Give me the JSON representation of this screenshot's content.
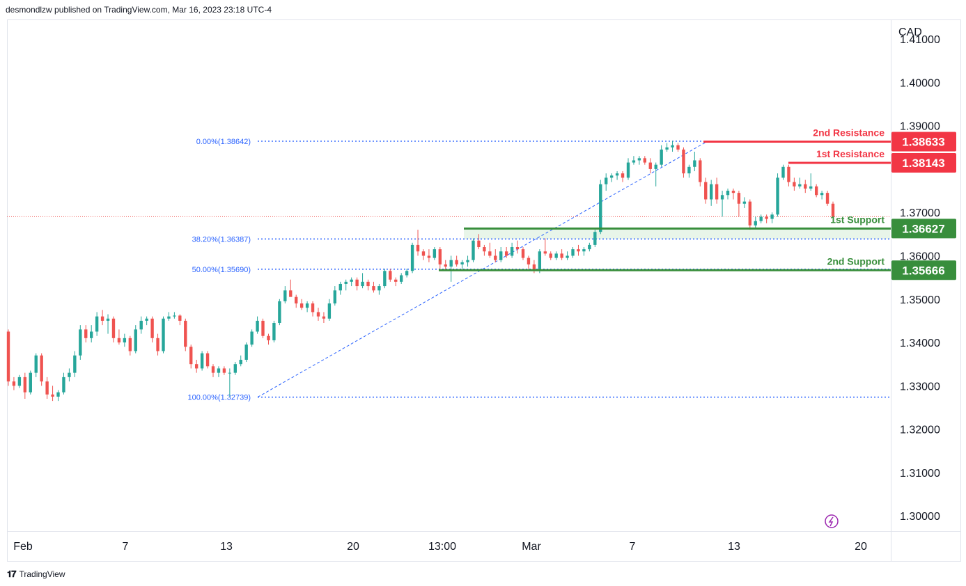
{
  "header": {
    "text": "desmondlzw published on TradingView.com, Mar 16, 2023 23:18 UTC-4"
  },
  "footer": {
    "brand": "TradingView",
    "logo_icon": "tradingview-logo-icon"
  },
  "colors": {
    "up": "#26a69a",
    "down": "#ef5350",
    "green": "#388e3c",
    "red": "#f23645",
    "fib": "#2962ff",
    "zone": "#e8f5e9"
  },
  "chart_data": {
    "type": "candlestick",
    "currency": "CAD",
    "ylim": [
      1.2965,
      1.4145
    ],
    "y_ticks": [
      "1.41000",
      "1.40000",
      "1.39000",
      "1.37000",
      "1.36000",
      "1.35000",
      "1.34000",
      "1.33000",
      "1.32000",
      "1.31000",
      "1.30000"
    ],
    "x_ticks": [
      "Feb",
      "7",
      "13",
      "20",
      "13:00",
      "Mar",
      "7",
      "13",
      "20"
    ],
    "levels": [
      {
        "label": "2nd Resistance",
        "value": "1.38633",
        "v": 1.38633,
        "kind": "resistance"
      },
      {
        "label": "1st Resistance",
        "value": "1.38143",
        "v": 1.38143,
        "kind": "resistance"
      },
      {
        "label": "1st Support",
        "value": "1.36627",
        "v": 1.36627,
        "kind": "support"
      },
      {
        "label": "2nd Support",
        "value": "1.35666",
        "v": 1.35666,
        "kind": "support"
      }
    ],
    "fib_levels": [
      {
        "label": "0.00%(1.38642)",
        "v": 1.38642
      },
      {
        "label": "38.20%(1.36387)",
        "v": 1.36387
      },
      {
        "label": "50.00%(1.35690)",
        "v": 1.3569
      },
      {
        "label": "100.00%(1.32739)",
        "v": 1.32739
      }
    ],
    "last_price": 1.369,
    "candles": [
      [
        1.3425,
        1.343,
        1.33,
        1.331
      ],
      [
        1.331,
        1.332,
        1.329,
        1.33
      ],
      [
        1.33,
        1.3325,
        1.3295,
        1.332
      ],
      [
        1.332,
        1.333,
        1.327,
        1.3285
      ],
      [
        1.3285,
        1.3335,
        1.328,
        1.333
      ],
      [
        1.333,
        1.3375,
        1.332,
        1.337
      ],
      [
        1.337,
        1.3375,
        1.33,
        1.331
      ],
      [
        1.331,
        1.332,
        1.327,
        1.328
      ],
      [
        1.328,
        1.33,
        1.3265,
        1.3275
      ],
      [
        1.3275,
        1.329,
        1.3265,
        1.3285
      ],
      [
        1.3285,
        1.333,
        1.328,
        1.332
      ],
      [
        1.332,
        1.334,
        1.331,
        1.333
      ],
      [
        1.333,
        1.338,
        1.332,
        1.337
      ],
      [
        1.337,
        1.344,
        1.336,
        1.343
      ],
      [
        1.343,
        1.344,
        1.34,
        1.341
      ],
      [
        1.341,
        1.344,
        1.34,
        1.3425
      ],
      [
        1.3425,
        1.347,
        1.3415,
        1.346
      ],
      [
        1.346,
        1.3475,
        1.344,
        1.345
      ],
      [
        1.345,
        1.3465,
        1.342,
        1.3455
      ],
      [
        1.3455,
        1.346,
        1.34,
        1.341
      ],
      [
        1.341,
        1.343,
        1.3395,
        1.34
      ],
      [
        1.34,
        1.342,
        1.339,
        1.341
      ],
      [
        1.341,
        1.3415,
        1.337,
        1.338
      ],
      [
        1.338,
        1.344,
        1.3375,
        1.343
      ],
      [
        1.343,
        1.346,
        1.342,
        1.345
      ],
      [
        1.345,
        1.346,
        1.344,
        1.3455
      ],
      [
        1.3455,
        1.346,
        1.34,
        1.341
      ],
      [
        1.341,
        1.342,
        1.337,
        1.338
      ],
      [
        1.338,
        1.346,
        1.3375,
        1.3455
      ],
      [
        1.3455,
        1.347,
        1.345,
        1.346
      ],
      [
        1.346,
        1.347,
        1.3455,
        1.3462
      ],
      [
        1.3462,
        1.3465,
        1.344,
        1.345
      ],
      [
        1.345,
        1.3455,
        1.338,
        1.339
      ],
      [
        1.339,
        1.3395,
        1.334,
        1.335
      ],
      [
        1.335,
        1.336,
        1.333,
        1.334
      ],
      [
        1.334,
        1.338,
        1.3335,
        1.3375
      ],
      [
        1.3375,
        1.338,
        1.334,
        1.3345
      ],
      [
        1.3345,
        1.335,
        1.332,
        1.333
      ],
      [
        1.333,
        1.3345,
        1.332,
        1.334
      ],
      [
        1.334,
        1.3345,
        1.3325,
        1.333
      ],
      [
        1.333,
        1.334,
        1.3275,
        1.333
      ],
      [
        1.333,
        1.3355,
        1.3325,
        1.335
      ],
      [
        1.335,
        1.337,
        1.3345,
        1.336
      ],
      [
        1.336,
        1.34,
        1.3355,
        1.3395
      ],
      [
        1.3395,
        1.343,
        1.339,
        1.3425
      ],
      [
        1.3425,
        1.346,
        1.342,
        1.345
      ],
      [
        1.345,
        1.3455,
        1.341,
        1.3415
      ],
      [
        1.3415,
        1.342,
        1.3395,
        1.3405
      ],
      [
        1.3405,
        1.345,
        1.34,
        1.3445
      ],
      [
        1.3445,
        1.35,
        1.344,
        1.3495
      ],
      [
        1.3495,
        1.353,
        1.349,
        1.352
      ],
      [
        1.352,
        1.3545,
        1.351,
        1.3505
      ],
      [
        1.3505,
        1.351,
        1.348,
        1.349
      ],
      [
        1.349,
        1.35,
        1.3475,
        1.348
      ],
      [
        1.348,
        1.3495,
        1.347,
        1.349
      ],
      [
        1.349,
        1.3495,
        1.346,
        1.347
      ],
      [
        1.347,
        1.348,
        1.345,
        1.346
      ],
      [
        1.346,
        1.347,
        1.3445,
        1.3455
      ],
      [
        1.3455,
        1.35,
        1.345,
        1.349
      ],
      [
        1.349,
        1.353,
        1.3485,
        1.352
      ],
      [
        1.352,
        1.354,
        1.351,
        1.3535
      ],
      [
        1.3535,
        1.3545,
        1.352,
        1.354
      ],
      [
        1.354,
        1.355,
        1.353,
        1.3545
      ],
      [
        1.3545,
        1.355,
        1.352,
        1.353
      ],
      [
        1.353,
        1.356,
        1.3525,
        1.354
      ],
      [
        1.354,
        1.3545,
        1.352,
        1.353
      ],
      [
        1.353,
        1.354,
        1.3515,
        1.352
      ],
      [
        1.352,
        1.3535,
        1.351,
        1.353
      ],
      [
        1.353,
        1.357,
        1.3525,
        1.3565
      ],
      [
        1.3565,
        1.357,
        1.354,
        1.3545
      ],
      [
        1.3545,
        1.355,
        1.353,
        1.354
      ],
      [
        1.354,
        1.356,
        1.3535,
        1.3555
      ],
      [
        1.3555,
        1.357,
        1.355,
        1.3565
      ],
      [
        1.3565,
        1.363,
        1.356,
        1.3625
      ],
      [
        1.3625,
        1.366,
        1.36,
        1.361
      ],
      [
        1.361,
        1.3615,
        1.359,
        1.36
      ],
      [
        1.36,
        1.3615,
        1.3585,
        1.3595
      ],
      [
        1.3595,
        1.362,
        1.359,
        1.3615
      ],
      [
        1.3615,
        1.362,
        1.357,
        1.358
      ],
      [
        1.358,
        1.359,
        1.3565,
        1.3575
      ],
      [
        1.3575,
        1.36,
        1.354,
        1.359
      ],
      [
        1.359,
        1.36,
        1.3575,
        1.358
      ],
      [
        1.358,
        1.359,
        1.357,
        1.3585
      ],
      [
        1.3585,
        1.36,
        1.3575,
        1.359
      ],
      [
        1.359,
        1.364,
        1.3585,
        1.3635
      ],
      [
        1.3635,
        1.365,
        1.3615,
        1.362
      ],
      [
        1.362,
        1.3625,
        1.36,
        1.361
      ],
      [
        1.361,
        1.363,
        1.3595,
        1.36
      ],
      [
        1.36,
        1.3615,
        1.3585,
        1.359
      ],
      [
        1.359,
        1.362,
        1.3585,
        1.361
      ],
      [
        1.361,
        1.362,
        1.3595,
        1.36
      ],
      [
        1.36,
        1.363,
        1.3595,
        1.362
      ],
      [
        1.362,
        1.3635,
        1.3605,
        1.3615
      ],
      [
        1.3615,
        1.362,
        1.359,
        1.3595
      ],
      [
        1.3595,
        1.36,
        1.357,
        1.358
      ],
      [
        1.358,
        1.359,
        1.356,
        1.3565
      ],
      [
        1.3565,
        1.3615,
        1.356,
        1.361
      ],
      [
        1.361,
        1.364,
        1.36,
        1.3605
      ],
      [
        1.3605,
        1.361,
        1.359,
        1.3595
      ],
      [
        1.3595,
        1.361,
        1.359,
        1.3605
      ],
      [
        1.3605,
        1.3615,
        1.359,
        1.3595
      ],
      [
        1.3595,
        1.361,
        1.359,
        1.36
      ],
      [
        1.36,
        1.362,
        1.3595,
        1.3615
      ],
      [
        1.3615,
        1.3625,
        1.36,
        1.361
      ],
      [
        1.361,
        1.362,
        1.36,
        1.3615
      ],
      [
        1.3615,
        1.363,
        1.361,
        1.3625
      ],
      [
        1.3625,
        1.366,
        1.362,
        1.3655
      ],
      [
        1.3655,
        1.3775,
        1.365,
        1.3765
      ],
      [
        1.3765,
        1.379,
        1.375,
        1.378
      ],
      [
        1.378,
        1.379,
        1.377,
        1.3785
      ],
      [
        1.3785,
        1.3795,
        1.3775,
        1.379
      ],
      [
        1.379,
        1.3795,
        1.377,
        1.378
      ],
      [
        1.378,
        1.3825,
        1.3775,
        1.3815
      ],
      [
        1.3815,
        1.383,
        1.381,
        1.382
      ],
      [
        1.382,
        1.383,
        1.381,
        1.3825
      ],
      [
        1.3825,
        1.383,
        1.381,
        1.3815
      ],
      [
        1.3815,
        1.3825,
        1.379,
        1.38
      ],
      [
        1.38,
        1.3815,
        1.376,
        1.381
      ],
      [
        1.381,
        1.3855,
        1.3805,
        1.3845
      ],
      [
        1.3845,
        1.386,
        1.384,
        1.385
      ],
      [
        1.385,
        1.3865,
        1.384,
        1.3855
      ],
      [
        1.3855,
        1.386,
        1.384,
        1.3845
      ],
      [
        1.3845,
        1.385,
        1.378,
        1.379
      ],
      [
        1.379,
        1.381,
        1.378,
        1.3805
      ],
      [
        1.3805,
        1.384,
        1.3795,
        1.382
      ],
      [
        1.382,
        1.3825,
        1.376,
        1.377
      ],
      [
        1.377,
        1.378,
        1.372,
        1.373
      ],
      [
        1.373,
        1.3775,
        1.3715,
        1.3765
      ],
      [
        1.3765,
        1.378,
        1.372,
        1.373
      ],
      [
        1.373,
        1.375,
        1.369,
        1.374
      ],
      [
        1.374,
        1.3755,
        1.373,
        1.375
      ],
      [
        1.375,
        1.3755,
        1.373,
        1.3745
      ],
      [
        1.3745,
        1.375,
        1.369,
        1.372
      ],
      [
        1.372,
        1.3735,
        1.371,
        1.3725
      ],
      [
        1.3725,
        1.373,
        1.366,
        1.367
      ],
      [
        1.367,
        1.369,
        1.3662,
        1.368
      ],
      [
        1.368,
        1.3695,
        1.3675,
        1.369
      ],
      [
        1.369,
        1.3695,
        1.3675,
        1.3685
      ],
      [
        1.3685,
        1.37,
        1.3675,
        1.3695
      ],
      [
        1.3695,
        1.379,
        1.369,
        1.378
      ],
      [
        1.378,
        1.381,
        1.3775,
        1.3805
      ],
      [
        1.3805,
        1.381,
        1.376,
        1.377
      ],
      [
        1.377,
        1.378,
        1.375,
        1.376
      ],
      [
        1.376,
        1.378,
        1.3755,
        1.3765
      ],
      [
        1.3765,
        1.3775,
        1.3745,
        1.3755
      ],
      [
        1.3755,
        1.379,
        1.375,
        1.376
      ],
      [
        1.376,
        1.3765,
        1.3735,
        1.374
      ],
      [
        1.374,
        1.375,
        1.373,
        1.3745
      ],
      [
        1.3745,
        1.375,
        1.3715,
        1.372
      ],
      [
        1.372,
        1.3725,
        1.3685,
        1.369
      ]
    ]
  }
}
